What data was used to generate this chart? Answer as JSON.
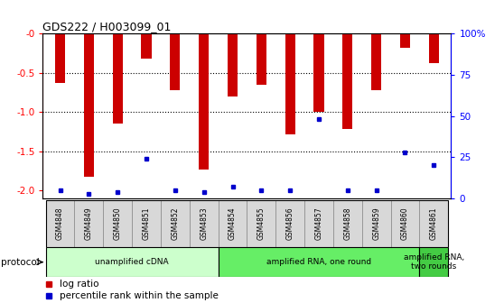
{
  "title": "GDS222 / H003099_01",
  "samples": [
    "GSM4848",
    "GSM4849",
    "GSM4850",
    "GSM4851",
    "GSM4852",
    "GSM4853",
    "GSM4854",
    "GSM4855",
    "GSM4856",
    "GSM4857",
    "GSM4858",
    "GSM4859",
    "GSM4860",
    "GSM4861"
  ],
  "log_ratio": [
    -0.63,
    -1.82,
    -1.15,
    -0.32,
    -0.72,
    -1.73,
    -0.8,
    -0.65,
    -1.28,
    -1.0,
    -1.22,
    -0.72,
    -0.18,
    -0.38
  ],
  "percentile": [
    5,
    3,
    4,
    24,
    5,
    4,
    7,
    5,
    5,
    48,
    5,
    5,
    28,
    20
  ],
  "bar_color": "#cc0000",
  "dot_color": "#0000cc",
  "ylim_left": [
    -2.1,
    0.0
  ],
  "ylim_right": [
    0,
    100
  ],
  "yticks_left": [
    0,
    -0.5,
    -1.0,
    -1.5,
    -2.0
  ],
  "yticks_right": [
    0,
    25,
    50,
    75,
    100
  ],
  "protocols": [
    {
      "label": "unamplified cDNA",
      "start": 0,
      "end": 5,
      "color": "#ccffcc"
    },
    {
      "label": "amplified RNA, one round",
      "start": 6,
      "end": 12,
      "color": "#66ee66"
    },
    {
      "label": "amplified RNA,\ntwo rounds",
      "start": 13,
      "end": 13,
      "color": "#44cc44"
    }
  ],
  "protocol_label": "protocol",
  "legend_logratio": "log ratio",
  "legend_percentile": "percentile rank within the sample",
  "bar_width": 0.35,
  "tick_bg_color": "#d8d8d8"
}
